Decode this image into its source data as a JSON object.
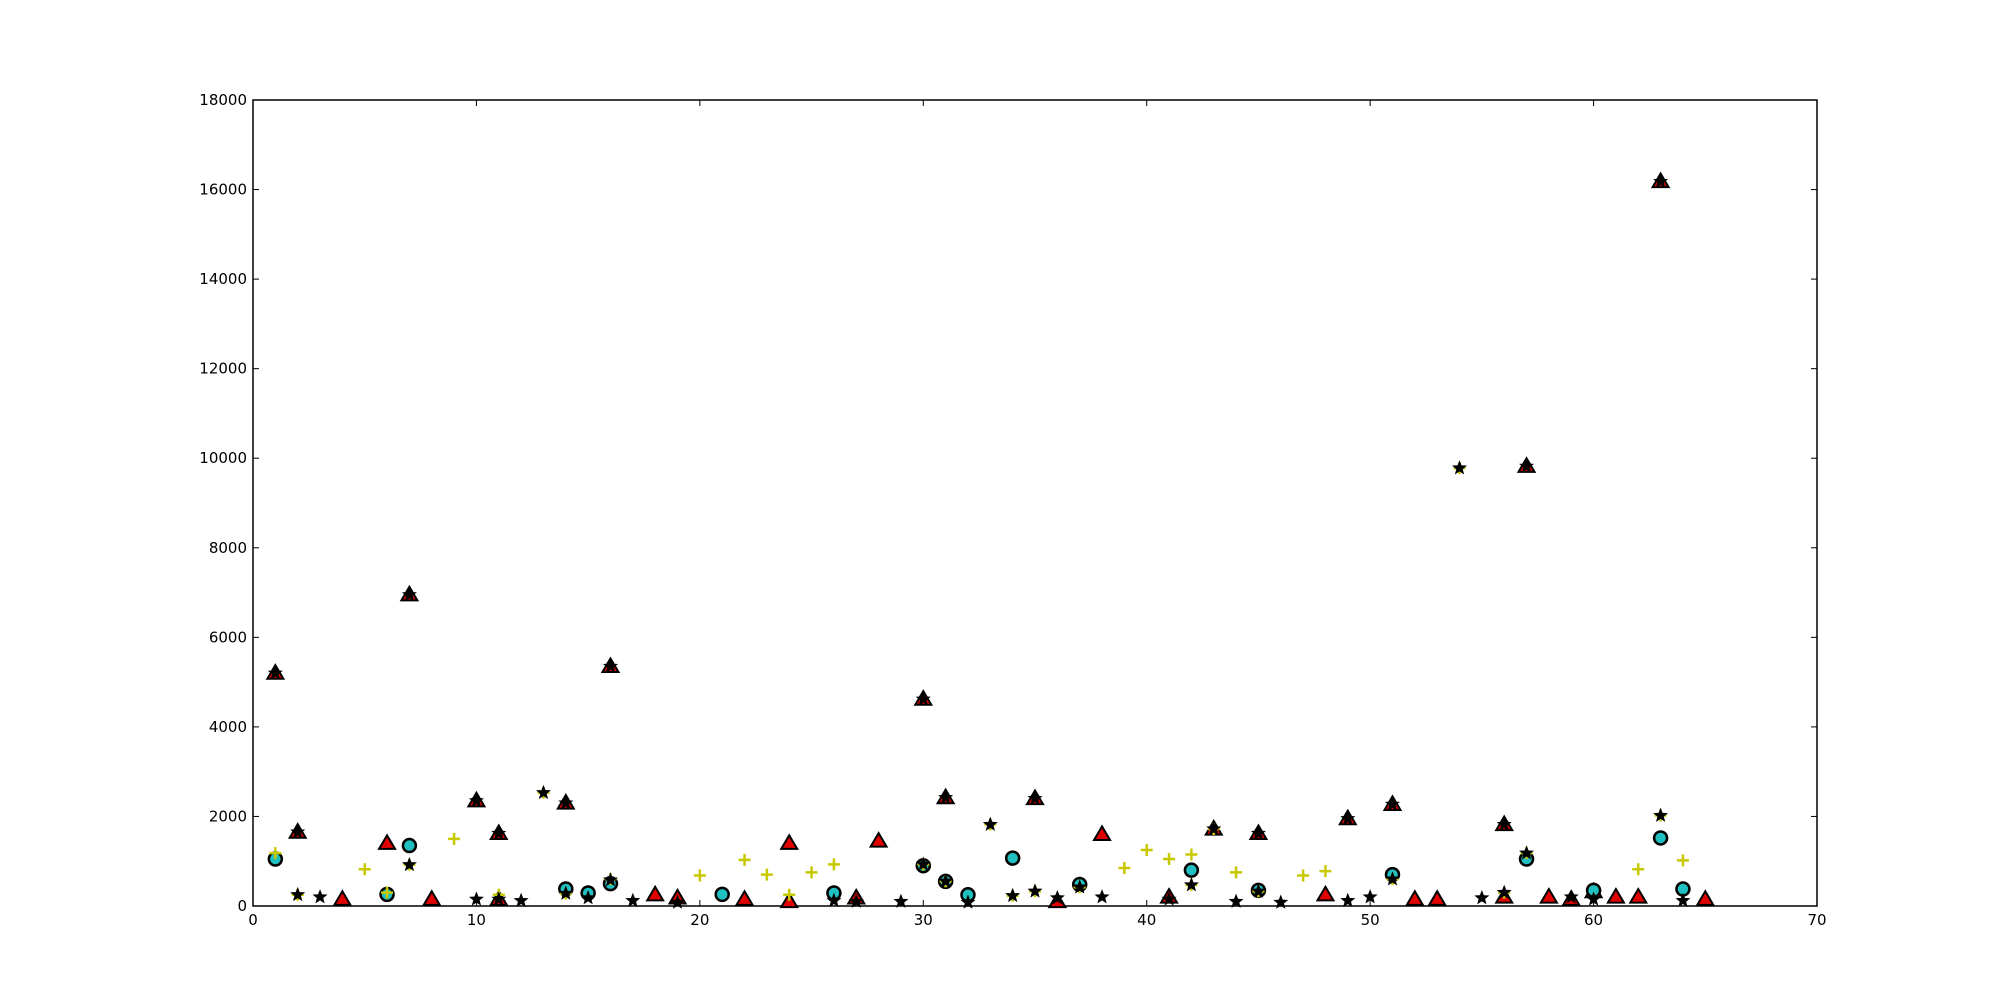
{
  "chart_data": {
    "type": "scatter",
    "title": "",
    "xlabel": "",
    "ylabel": "",
    "xlim": [
      0,
      70
    ],
    "ylim": [
      0,
      18000
    ],
    "x_ticks": [
      0,
      10,
      20,
      30,
      40,
      50,
      60,
      70
    ],
    "y_ticks": [
      0,
      2000,
      4000,
      6000,
      8000,
      10000,
      12000,
      14000,
      16000,
      18000
    ],
    "grid": false,
    "legend": "none",
    "series": [
      {
        "marker": "triangle",
        "color": "#e00000",
        "points": [
          [
            1,
            5200
          ],
          [
            2,
            1650
          ],
          [
            4,
            150
          ],
          [
            6,
            1400
          ],
          [
            7,
            6950
          ],
          [
            8,
            150
          ],
          [
            10,
            2350
          ],
          [
            11,
            1620
          ],
          [
            11,
            150
          ],
          [
            14,
            2300
          ],
          [
            16,
            5350
          ],
          [
            18,
            250
          ],
          [
            19,
            180
          ],
          [
            22,
            150
          ],
          [
            24,
            1400
          ],
          [
            24,
            100
          ],
          [
            27,
            180
          ],
          [
            28,
            1450
          ],
          [
            30,
            4620
          ],
          [
            31,
            2420
          ],
          [
            35,
            2400
          ],
          [
            36,
            100
          ],
          [
            38,
            1600
          ],
          [
            41,
            200
          ],
          [
            43,
            1720
          ],
          [
            45,
            1620
          ],
          [
            48,
            250
          ],
          [
            49,
            1950
          ],
          [
            51,
            2270
          ],
          [
            52,
            150
          ],
          [
            53,
            150
          ],
          [
            56,
            1820
          ],
          [
            56,
            200
          ],
          [
            57,
            9820
          ],
          [
            58,
            200
          ],
          [
            59,
            150
          ],
          [
            60,
            320
          ],
          [
            61,
            200
          ],
          [
            62,
            200
          ],
          [
            63,
            16180
          ],
          [
            65,
            150
          ]
        ]
      },
      {
        "marker": "circle",
        "color": "#20c0c0",
        "points": [
          [
            1,
            1050
          ],
          [
            6,
            260
          ],
          [
            7,
            1350
          ],
          [
            14,
            380
          ],
          [
            15,
            290
          ],
          [
            16,
            500
          ],
          [
            21,
            260
          ],
          [
            26,
            290
          ],
          [
            30,
            900
          ],
          [
            31,
            550
          ],
          [
            32,
            250
          ],
          [
            34,
            1070
          ],
          [
            37,
            480
          ],
          [
            42,
            800
          ],
          [
            45,
            350
          ],
          [
            51,
            700
          ],
          [
            57,
            1050
          ],
          [
            60,
            350
          ],
          [
            63,
            1520
          ],
          [
            64,
            380
          ]
        ]
      },
      {
        "marker": "plus",
        "color": "#c8c800",
        "points": [
          [
            1,
            1180
          ],
          [
            2,
            250
          ],
          [
            5,
            820
          ],
          [
            6,
            300
          ],
          [
            7,
            920
          ],
          [
            9,
            1500
          ],
          [
            11,
            250
          ],
          [
            13,
            2530
          ],
          [
            14,
            280
          ],
          [
            16,
            600
          ],
          [
            20,
            680
          ],
          [
            22,
            1030
          ],
          [
            23,
            700
          ],
          [
            24,
            250
          ],
          [
            25,
            750
          ],
          [
            26,
            930
          ],
          [
            30,
            930
          ],
          [
            31,
            550
          ],
          [
            33,
            1820
          ],
          [
            34,
            230
          ],
          [
            35,
            330
          ],
          [
            37,
            420
          ],
          [
            39,
            850
          ],
          [
            40,
            1250
          ],
          [
            41,
            1050
          ],
          [
            42,
            1150
          ],
          [
            42,
            470
          ],
          [
            43,
            1720
          ],
          [
            44,
            750
          ],
          [
            45,
            330
          ],
          [
            47,
            680
          ],
          [
            48,
            780
          ],
          [
            51,
            600
          ],
          [
            54,
            9780
          ],
          [
            56,
            300
          ],
          [
            57,
            1180
          ],
          [
            62,
            820
          ],
          [
            63,
            2020
          ],
          [
            64,
            1020
          ]
        ]
      },
      {
        "marker": "star",
        "color": "#000000",
        "points": [
          [
            1,
            5200
          ],
          [
            2,
            1650
          ],
          [
            2,
            250
          ],
          [
            3,
            200
          ],
          [
            7,
            6950
          ],
          [
            7,
            920
          ],
          [
            10,
            2350
          ],
          [
            10,
            150
          ],
          [
            11,
            1620
          ],
          [
            11,
            150
          ],
          [
            12,
            120
          ],
          [
            13,
            2530
          ],
          [
            14,
            2300
          ],
          [
            14,
            280
          ],
          [
            15,
            180
          ],
          [
            16,
            5350
          ],
          [
            16,
            580
          ],
          [
            17,
            120
          ],
          [
            19,
            80
          ],
          [
            26,
            120
          ],
          [
            27,
            100
          ],
          [
            29,
            100
          ],
          [
            30,
            4620
          ],
          [
            30,
            930
          ],
          [
            31,
            2420
          ],
          [
            31,
            550
          ],
          [
            32,
            80
          ],
          [
            33,
            1820
          ],
          [
            34,
            230
          ],
          [
            35,
            2400
          ],
          [
            35,
            330
          ],
          [
            36,
            180
          ],
          [
            37,
            420
          ],
          [
            38,
            200
          ],
          [
            41,
            150
          ],
          [
            42,
            470
          ],
          [
            43,
            1720
          ],
          [
            44,
            100
          ],
          [
            45,
            1620
          ],
          [
            45,
            330
          ],
          [
            46,
            80
          ],
          [
            49,
            1950
          ],
          [
            49,
            120
          ],
          [
            50,
            200
          ],
          [
            51,
            2270
          ],
          [
            51,
            600
          ],
          [
            54,
            9780
          ],
          [
            55,
            180
          ],
          [
            56,
            1820
          ],
          [
            56,
            300
          ],
          [
            57,
            9820
          ],
          [
            57,
            1180
          ],
          [
            59,
            200
          ],
          [
            60,
            150
          ],
          [
            63,
            16180
          ],
          [
            63,
            2020
          ],
          [
            64,
            120
          ]
        ]
      }
    ]
  }
}
